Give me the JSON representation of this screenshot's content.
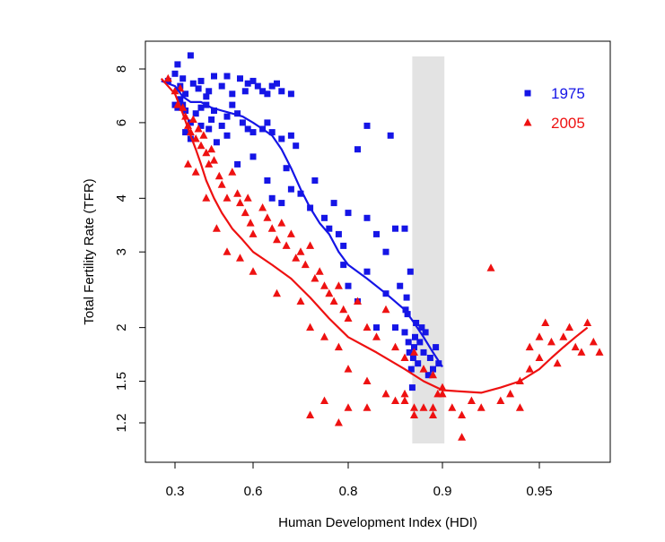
{
  "chart_data": {
    "type": "scatter",
    "title": "",
    "xlabel": "Human Development Index (HDI)",
    "ylabel": "Total Fertility Rate (TFR)",
    "y_scale": "log",
    "x_scale": "nonlinear (ticks unevenly spaced)",
    "xlim": [
      0.27,
      0.985
    ],
    "ylim": [
      1.1,
      8.8
    ],
    "x_ticks": [
      0.3,
      0.6,
      0.8,
      0.9,
      0.95
    ],
    "x_tick_labels": [
      "0.3",
      "0.6",
      "0.8",
      "0.9",
      "0.95"
    ],
    "y_ticks": [
      1.2,
      1.5,
      2,
      3,
      4,
      6,
      8
    ],
    "y_tick_labels": [
      "1.2",
      "1.5",
      "2",
      "3",
      "4",
      "6",
      "8"
    ],
    "legend_position": "top-right",
    "grid": false,
    "shaded_band": {
      "x": [
        0.868,
        0.901
      ],
      "color": "#e3e3e3"
    },
    "series": [
      {
        "name": "1975",
        "color": "#1515e6",
        "marker": "square",
        "points": [
          [
            0.29,
            7.5
          ],
          [
            0.3,
            7.8
          ],
          [
            0.31,
            8.2
          ],
          [
            0.32,
            7.3
          ],
          [
            0.33,
            7.6
          ],
          [
            0.34,
            7.0
          ],
          [
            0.36,
            8.6
          ],
          [
            0.37,
            7.4
          ],
          [
            0.39,
            7.2
          ],
          [
            0.4,
            7.5
          ],
          [
            0.42,
            6.9
          ],
          [
            0.43,
            7.1
          ],
          [
            0.45,
            7.7
          ],
          [
            0.48,
            7.3
          ],
          [
            0.5,
            7.7
          ],
          [
            0.52,
            7.0
          ],
          [
            0.55,
            7.6
          ],
          [
            0.57,
            7.1
          ],
          [
            0.58,
            7.4
          ],
          [
            0.6,
            7.5
          ],
          [
            0.61,
            7.3
          ],
          [
            0.62,
            7.1
          ],
          [
            0.63,
            7.0
          ],
          [
            0.64,
            7.3
          ],
          [
            0.65,
            7.4
          ],
          [
            0.66,
            7.1
          ],
          [
            0.68,
            7.0
          ],
          [
            0.3,
            6.6
          ],
          [
            0.31,
            6.5
          ],
          [
            0.32,
            6.8
          ],
          [
            0.33,
            6.6
          ],
          [
            0.34,
            6.4
          ],
          [
            0.36,
            6.0
          ],
          [
            0.38,
            6.3
          ],
          [
            0.4,
            6.5
          ],
          [
            0.42,
            6.6
          ],
          [
            0.44,
            6.1
          ],
          [
            0.45,
            6.4
          ],
          [
            0.48,
            5.9
          ],
          [
            0.5,
            6.2
          ],
          [
            0.52,
            6.6
          ],
          [
            0.54,
            6.3
          ],
          [
            0.56,
            6.0
          ],
          [
            0.58,
            5.8
          ],
          [
            0.6,
            5.7
          ],
          [
            0.62,
            5.8
          ],
          [
            0.63,
            6.0
          ],
          [
            0.64,
            5.7
          ],
          [
            0.66,
            5.5
          ],
          [
            0.68,
            5.6
          ],
          [
            0.34,
            5.7
          ],
          [
            0.36,
            5.5
          ],
          [
            0.4,
            5.9
          ],
          [
            0.43,
            5.8
          ],
          [
            0.46,
            5.4
          ],
          [
            0.5,
            5.6
          ],
          [
            0.54,
            4.8
          ],
          [
            0.6,
            5.0
          ],
          [
            0.63,
            4.4
          ],
          [
            0.64,
            4.0
          ],
          [
            0.66,
            3.9
          ],
          [
            0.67,
            4.7
          ],
          [
            0.68,
            4.2
          ],
          [
            0.69,
            5.3
          ],
          [
            0.7,
            4.1
          ],
          [
            0.72,
            3.8
          ],
          [
            0.73,
            4.4
          ],
          [
            0.75,
            3.6
          ],
          [
            0.76,
            3.4
          ],
          [
            0.77,
            3.9
          ],
          [
            0.78,
            3.3
          ],
          [
            0.79,
            3.1
          ],
          [
            0.8,
            3.7
          ],
          [
            0.81,
            5.2
          ],
          [
            0.82,
            5.9
          ],
          [
            0.82,
            3.6
          ],
          [
            0.83,
            3.3
          ],
          [
            0.84,
            3.0
          ],
          [
            0.845,
            5.6
          ],
          [
            0.85,
            3.4
          ],
          [
            0.86,
            3.4
          ],
          [
            0.79,
            2.8
          ],
          [
            0.8,
            2.5
          ],
          [
            0.81,
            2.3
          ],
          [
            0.82,
            2.7
          ],
          [
            0.83,
            2.0
          ],
          [
            0.84,
            2.4
          ],
          [
            0.85,
            2.0
          ],
          [
            0.855,
            2.5
          ],
          [
            0.86,
            1.95
          ],
          [
            0.861,
            2.2
          ],
          [
            0.862,
            2.35
          ],
          [
            0.863,
            2.15
          ],
          [
            0.864,
            1.85
          ],
          [
            0.865,
            1.75
          ],
          [
            0.866,
            2.7
          ],
          [
            0.867,
            1.6
          ],
          [
            0.868,
            1.45
          ],
          [
            0.869,
            1.7
          ],
          [
            0.87,
            1.8
          ],
          [
            0.871,
            1.9
          ],
          [
            0.872,
            2.05
          ],
          [
            0.874,
            1.65
          ],
          [
            0.876,
            1.85
          ],
          [
            0.878,
            2.0
          ],
          [
            0.88,
            1.75
          ],
          [
            0.882,
            1.95
          ],
          [
            0.885,
            1.55
          ],
          [
            0.887,
            1.7
          ],
          [
            0.89,
            1.6
          ],
          [
            0.893,
            1.8
          ],
          [
            0.896,
            1.65
          ]
        ],
        "trend": [
          [
            0.28,
            7.5
          ],
          [
            0.3,
            7.3
          ],
          [
            0.33,
            6.9
          ],
          [
            0.36,
            6.7
          ],
          [
            0.4,
            6.7
          ],
          [
            0.44,
            6.5
          ],
          [
            0.48,
            6.4
          ],
          [
            0.52,
            6.3
          ],
          [
            0.56,
            6.2
          ],
          [
            0.6,
            6.0
          ],
          [
            0.62,
            5.8
          ],
          [
            0.64,
            5.6
          ],
          [
            0.66,
            5.2
          ],
          [
            0.68,
            4.7
          ],
          [
            0.7,
            4.2
          ],
          [
            0.72,
            3.8
          ],
          [
            0.74,
            3.5
          ],
          [
            0.76,
            3.3
          ],
          [
            0.78,
            3.0
          ],
          [
            0.8,
            2.8
          ],
          [
            0.82,
            2.6
          ],
          [
            0.84,
            2.4
          ],
          [
            0.86,
            2.2
          ],
          [
            0.87,
            2.05
          ],
          [
            0.88,
            1.9
          ],
          [
            0.89,
            1.75
          ],
          [
            0.9,
            1.62
          ]
        ]
      },
      {
        "name": "2005",
        "color": "#ee1111",
        "marker": "triangle",
        "points": [
          [
            0.29,
            7.6
          ],
          [
            0.3,
            7.1
          ],
          [
            0.31,
            6.6
          ],
          [
            0.32,
            7.2
          ],
          [
            0.33,
            6.5
          ],
          [
            0.34,
            6.2
          ],
          [
            0.35,
            5.9
          ],
          [
            0.36,
            5.7
          ],
          [
            0.37,
            6.1
          ],
          [
            0.38,
            5.5
          ],
          [
            0.39,
            5.8
          ],
          [
            0.4,
            5.3
          ],
          [
            0.41,
            5.6
          ],
          [
            0.42,
            5.1
          ],
          [
            0.43,
            4.8
          ],
          [
            0.44,
            5.2
          ],
          [
            0.45,
            4.9
          ],
          [
            0.47,
            4.5
          ],
          [
            0.48,
            4.3
          ],
          [
            0.5,
            4.0
          ],
          [
            0.52,
            4.6
          ],
          [
            0.54,
            4.1
          ],
          [
            0.55,
            3.9
          ],
          [
            0.57,
            3.7
          ],
          [
            0.58,
            4.0
          ],
          [
            0.59,
            3.5
          ],
          [
            0.6,
            3.3
          ],
          [
            0.62,
            3.8
          ],
          [
            0.63,
            3.6
          ],
          [
            0.64,
            3.4
          ],
          [
            0.65,
            3.2
          ],
          [
            0.66,
            3.5
          ],
          [
            0.67,
            3.1
          ],
          [
            0.68,
            3.3
          ],
          [
            0.69,
            2.9
          ],
          [
            0.7,
            3.0
          ],
          [
            0.71,
            2.8
          ],
          [
            0.72,
            3.1
          ],
          [
            0.73,
            2.6
          ],
          [
            0.74,
            2.7
          ],
          [
            0.75,
            2.5
          ],
          [
            0.76,
            2.4
          ],
          [
            0.77,
            2.3
          ],
          [
            0.78,
            2.5
          ],
          [
            0.79,
            2.2
          ],
          [
            0.8,
            2.1
          ],
          [
            0.81,
            2.3
          ],
          [
            0.82,
            2.0
          ],
          [
            0.83,
            1.9
          ],
          [
            0.84,
            2.2
          ],
          [
            0.85,
            1.8
          ],
          [
            0.86,
            1.7
          ],
          [
            0.87,
            1.75
          ],
          [
            0.88,
            1.6
          ],
          [
            0.89,
            1.55
          ],
          [
            0.9,
            1.45
          ],
          [
            0.35,
            4.8
          ],
          [
            0.38,
            4.6
          ],
          [
            0.42,
            4.0
          ],
          [
            0.46,
            3.4
          ],
          [
            0.5,
            3.0
          ],
          [
            0.55,
            2.9
          ],
          [
            0.6,
            2.7
          ],
          [
            0.65,
            2.4
          ],
          [
            0.7,
            2.3
          ],
          [
            0.72,
            2.0
          ],
          [
            0.75,
            1.9
          ],
          [
            0.78,
            1.8
          ],
          [
            0.8,
            1.6
          ],
          [
            0.82,
            1.5
          ],
          [
            0.84,
            1.4
          ],
          [
            0.86,
            1.35
          ],
          [
            0.87,
            1.3
          ],
          [
            0.88,
            1.3
          ],
          [
            0.89,
            1.25
          ],
          [
            0.895,
            1.4
          ],
          [
            0.9,
            1.4
          ],
          [
            0.905,
            1.3
          ],
          [
            0.91,
            1.25
          ],
          [
            0.915,
            1.35
          ],
          [
            0.72,
            1.25
          ],
          [
            0.75,
            1.35
          ],
          [
            0.78,
            1.2
          ],
          [
            0.8,
            1.3
          ],
          [
            0.82,
            1.3
          ],
          [
            0.85,
            1.35
          ],
          [
            0.86,
            1.4
          ],
          [
            0.87,
            1.25
          ],
          [
            0.89,
            1.3
          ],
          [
            0.91,
            1.11
          ],
          [
            0.92,
            1.3
          ],
          [
            0.925,
            2.75
          ],
          [
            0.93,
            1.35
          ],
          [
            0.935,
            1.4
          ],
          [
            0.94,
            1.3
          ],
          [
            0.94,
            1.5
          ],
          [
            0.945,
            1.6
          ],
          [
            0.945,
            1.8
          ],
          [
            0.95,
            1.7
          ],
          [
            0.95,
            1.9
          ],
          [
            0.955,
            2.05
          ],
          [
            0.96,
            1.85
          ],
          [
            0.965,
            1.65
          ],
          [
            0.97,
            1.9
          ],
          [
            0.975,
            2.0
          ],
          [
            0.98,
            1.8
          ],
          [
            0.985,
            1.75
          ],
          [
            0.99,
            2.05
          ],
          [
            0.995,
            1.85
          ],
          [
            1.0,
            1.75
          ]
        ],
        "trend": [
          [
            0.28,
            7.6
          ],
          [
            0.3,
            7.0
          ],
          [
            0.33,
            6.3
          ],
          [
            0.36,
            5.6
          ],
          [
            0.38,
            5.2
          ],
          [
            0.4,
            4.8
          ],
          [
            0.42,
            4.4
          ],
          [
            0.45,
            4.0
          ],
          [
            0.48,
            3.7
          ],
          [
            0.52,
            3.4
          ],
          [
            0.56,
            3.2
          ],
          [
            0.6,
            3.0
          ],
          [
            0.64,
            2.8
          ],
          [
            0.68,
            2.6
          ],
          [
            0.72,
            2.35
          ],
          [
            0.76,
            2.1
          ],
          [
            0.8,
            1.9
          ],
          [
            0.83,
            1.75
          ],
          [
            0.86,
            1.6
          ],
          [
            0.88,
            1.5
          ],
          [
            0.9,
            1.43
          ],
          [
            0.91,
            1.42
          ],
          [
            0.92,
            1.41
          ],
          [
            0.93,
            1.45
          ],
          [
            0.94,
            1.5
          ],
          [
            0.95,
            1.6
          ],
          [
            0.96,
            1.7
          ],
          [
            0.97,
            1.8
          ],
          [
            0.98,
            1.9
          ],
          [
            0.99,
            2.0
          ]
        ]
      }
    ]
  }
}
